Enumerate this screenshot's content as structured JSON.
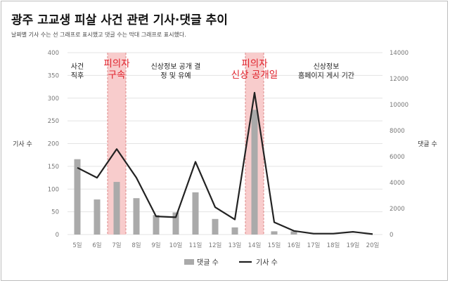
{
  "title": "광주 고교생 피살 사건 관련 기사·댓글 추이",
  "subtitle": "날짜별 기사 수는 선 그래프로 표시했고 댓글 수는 막대 그래프로 표시했다.",
  "chart_data": {
    "type": "bar+line",
    "categories": [
      "5일",
      "6일",
      "7일",
      "8일",
      "9일",
      "10일",
      "11일",
      "12일",
      "13일",
      "14일",
      "15일",
      "16일",
      "17일",
      "18일",
      "19일",
      "20일"
    ],
    "series": [
      {
        "name": "댓글 수",
        "type": "bar",
        "axis": "right",
        "values": [
          5800,
          2700,
          4050,
          2800,
          1500,
          1700,
          3250,
          1200,
          550,
          9600,
          250,
          250,
          0,
          0,
          0,
          0
        ]
      },
      {
        "name": "기사 수",
        "type": "line",
        "axis": "left",
        "values": [
          147,
          125,
          188,
          125,
          40,
          38,
          160,
          60,
          33,
          312,
          27,
          8,
          2,
          2,
          6,
          1
        ]
      }
    ],
    "ylabel": "기사 수",
    "ylabel_right": "댓글 수",
    "ylim": [
      0,
      400
    ],
    "yticks": [
      0,
      50,
      100,
      150,
      200,
      250,
      300,
      350,
      400
    ],
    "ylim_right": [
      0,
      14000
    ],
    "yticks_right": [
      0,
      2000,
      4000,
      6000,
      8000,
      10000,
      12000,
      14000
    ],
    "grid": true,
    "legend": "bottom-center",
    "highlights": [
      {
        "category": "7일",
        "label": "피의자 구속",
        "lines": [
          "피의자",
          "구속"
        ]
      },
      {
        "category": "14일",
        "label": "피의자 신상 공개일",
        "lines": [
          "피의자",
          "신상 공개일"
        ]
      }
    ],
    "annotations": [
      {
        "category": "5일",
        "lines": [
          "사건",
          "직후"
        ]
      },
      {
        "category": "10일",
        "lines": [
          "신상정보 공개 결",
          "정 및 유예"
        ]
      },
      {
        "category": "18일",
        "lines": [
          "신상정보",
          "홈페이지 게시 기간"
        ]
      }
    ],
    "colors": {
      "bar": "#aaaaaa",
      "line": "#222222",
      "highlight": "#f8cccc",
      "highlight_text": "#e0202a",
      "grid": "#e3e3e3"
    }
  }
}
